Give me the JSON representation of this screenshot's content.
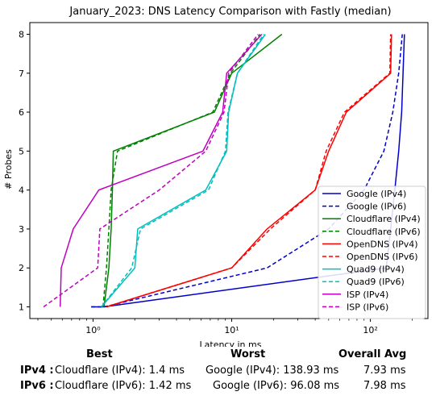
{
  "chart_data": {
    "type": "line",
    "title": "January_2023: DNS Latency Comparison with Fastly (median)",
    "xlabel": "Latency in ms",
    "ylabel": "# Probes",
    "xscale": "log",
    "xlim": [
      0.35,
      260
    ],
    "ylim": [
      0.7,
      8.3
    ],
    "x_ticks": [
      {
        "value": 1,
        "label": "10⁰"
      },
      {
        "value": 10,
        "label": "10¹"
      },
      {
        "value": 100,
        "label": "10²"
      }
    ],
    "y_ticks": [
      1,
      2,
      3,
      4,
      5,
      6,
      7,
      8
    ],
    "legend": "lower-right",
    "series": [
      {
        "name": "Google (IPv4)",
        "color": "#0000cc",
        "dash": "solid",
        "points": [
          [
            0.97,
            1
          ],
          [
            1.2,
            1
          ],
          [
            130,
            2
          ],
          [
            140,
            3
          ],
          [
            150,
            4
          ],
          [
            160,
            5
          ],
          [
            168,
            6
          ],
          [
            172,
            7
          ],
          [
            176,
            8
          ]
        ]
      },
      {
        "name": "Google (IPv6)",
        "color": "#0000cc",
        "dash": "dashed",
        "points": [
          [
            0.97,
            1
          ],
          [
            1.2,
            1
          ],
          [
            18,
            2
          ],
          [
            50,
            3
          ],
          [
            90,
            4
          ],
          [
            125,
            5
          ],
          [
            145,
            6
          ],
          [
            160,
            7
          ],
          [
            170,
            8
          ]
        ]
      },
      {
        "name": "Cloudflare (IPv4)",
        "color": "#008000",
        "dash": "solid",
        "points": [
          [
            1.2,
            1
          ],
          [
            1.3,
            2
          ],
          [
            1.35,
            3
          ],
          [
            1.38,
            4
          ],
          [
            1.4,
            5
          ],
          [
            7.5,
            6
          ],
          [
            10,
            7
          ],
          [
            23,
            8
          ]
        ]
      },
      {
        "name": "Cloudflare (IPv6)",
        "color": "#008000",
        "dash": "dashed",
        "points": [
          [
            1.18,
            1
          ],
          [
            1.25,
            2
          ],
          [
            1.3,
            3
          ],
          [
            1.35,
            4
          ],
          [
            1.5,
            5
          ],
          [
            7.3,
            6
          ],
          [
            9.8,
            7
          ],
          [
            16,
            8
          ]
        ]
      },
      {
        "name": "OpenDNS (IPv4)",
        "color": "#ff0000",
        "dash": "solid",
        "points": [
          [
            1.25,
            1
          ],
          [
            10,
            2
          ],
          [
            18,
            3
          ],
          [
            40,
            4
          ],
          [
            50,
            5
          ],
          [
            67,
            6
          ],
          [
            140,
            7
          ],
          [
            142,
            8
          ]
        ]
      },
      {
        "name": "OpenDNS (IPv6)",
        "color": "#ff0000",
        "dash": "dashed",
        "points": [
          [
            1.25,
            1
          ],
          [
            10,
            2
          ],
          [
            19,
            3
          ],
          [
            40,
            4
          ],
          [
            48,
            5
          ],
          [
            65,
            6
          ],
          [
            138,
            7
          ],
          [
            140,
            8
          ]
        ]
      },
      {
        "name": "Quad9 (IPv4)",
        "color": "#00bfbf",
        "dash": "solid",
        "points": [
          [
            1.15,
            1
          ],
          [
            2,
            2
          ],
          [
            2.1,
            3
          ],
          [
            6.5,
            4
          ],
          [
            9.2,
            5
          ],
          [
            9.5,
            6
          ],
          [
            11,
            7
          ],
          [
            17.5,
            8
          ]
        ]
      },
      {
        "name": "Quad9 (IPv6)",
        "color": "#00bfbf",
        "dash": "dashed",
        "points": [
          [
            1.15,
            1
          ],
          [
            1.9,
            2
          ],
          [
            2.2,
            3
          ],
          [
            6.8,
            4
          ],
          [
            9,
            5
          ],
          [
            9.4,
            6
          ],
          [
            11,
            7
          ],
          [
            17,
            8
          ]
        ]
      },
      {
        "name": "ISP (IPv4)",
        "color": "#bf00bf",
        "dash": "solid",
        "points": [
          [
            0.58,
            1
          ],
          [
            0.59,
            2
          ],
          [
            0.72,
            3
          ],
          [
            1.1,
            4
          ],
          [
            6.2,
            5
          ],
          [
            8.6,
            6
          ],
          [
            9.2,
            7
          ],
          [
            16.5,
            8
          ]
        ]
      },
      {
        "name": "ISP (IPv6)",
        "color": "#bf00bf",
        "dash": "dashed",
        "points": [
          [
            0.44,
            1
          ],
          [
            1.08,
            2
          ],
          [
            1.12,
            3
          ],
          [
            3,
            4
          ],
          [
            6.5,
            5
          ],
          [
            8.8,
            6
          ],
          [
            9.5,
            7
          ],
          [
            15.5,
            8
          ]
        ]
      }
    ]
  },
  "summary": {
    "headers": {
      "best": "Best",
      "worst": "Worst",
      "overall": "Overall Avg"
    },
    "rows": [
      {
        "label": "IPv4 :",
        "best": "Cloudflare (IPv4): 1.4 ms",
        "worst": "Google (IPv4): 138.93 ms",
        "overall": "7.93 ms"
      },
      {
        "label": "IPv6 :",
        "best": "Cloudflare (IPv6): 1.42 ms",
        "worst": "Google (IPv6): 96.08 ms",
        "overall": "7.98 ms"
      }
    ]
  }
}
